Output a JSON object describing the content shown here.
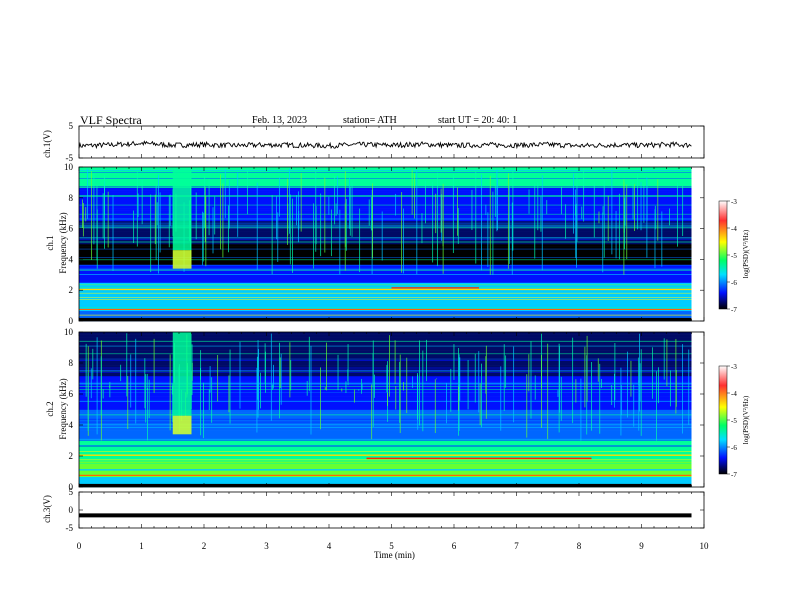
{
  "header": {
    "title": "VLF  Spectra",
    "date": "Feb. 13, 2023",
    "station": "station= ATH",
    "start": "start  UT  =    20: 40: 1"
  },
  "chart_data": [
    {
      "type": "line",
      "panel": "ch1-waveform",
      "ylabel": "ch.1(V)",
      "ylim": [
        -5,
        5
      ],
      "yticks": [
        "5",
        "-5"
      ],
      "x": [
        0,
        0.5,
        1,
        1.5,
        2,
        2.5,
        3,
        3.5,
        4,
        4.5,
        5,
        5.5,
        6,
        6.5,
        7,
        7.5,
        8,
        8.5,
        9,
        9.5,
        9.8
      ],
      "values": [
        -1.2,
        -0.9,
        -0.4,
        -1.0,
        -0.8,
        -1.1,
        -0.9,
        -1.0,
        -1.2,
        -0.8,
        -1.0,
        -0.7,
        -1.1,
        -0.9,
        -1.0,
        -0.8,
        -1.2,
        -0.9,
        -1.0,
        -0.8,
        -1.0
      ],
      "color": "#000000"
    },
    {
      "type": "heatmap",
      "panel": "ch1-spectrogram",
      "ylabel": "ch.1\nFrequency (kHz)",
      "ylim": [
        0,
        10
      ],
      "yticks": [
        "0",
        "2",
        "4",
        "6",
        "8",
        "10"
      ],
      "colorbar": {
        "label": "log(PSD)(V²/Hz)",
        "range": [
          -7,
          -3
        ],
        "ticks": [
          "-3",
          "-4",
          "-5",
          "-6",
          "-7"
        ],
        "colors": [
          "#ffffff",
          "#ff0000",
          "#ffff00",
          "#00ff66",
          "#00ffff",
          "#0000ff",
          "#000000"
        ]
      },
      "features": {
        "burst_time_min": [
          1.5,
          1.8
        ],
        "dark_band_khz": [
          3.5,
          6.0
        ],
        "bright_band_khz": [
          0.6,
          2.4
        ]
      }
    },
    {
      "type": "heatmap",
      "panel": "ch2-spectrogram",
      "ylabel": "ch.2\nFrequency (kHz)",
      "ylim": [
        0,
        10
      ],
      "yticks": [
        "0",
        "2",
        "4",
        "6",
        "8",
        "10"
      ],
      "colorbar": {
        "label": "log(PSD)(V²/Hz)",
        "range": [
          -7,
          -3
        ],
        "ticks": [
          "-3",
          "-4",
          "-5",
          "-6",
          "-7"
        ],
        "colors": [
          "#ffffff",
          "#ff0000",
          "#ffff00",
          "#00ff66",
          "#00ffff",
          "#0000ff",
          "#000000"
        ]
      },
      "features": {
        "burst_time_min": [
          1.5,
          1.8
        ],
        "bright_band_khz": [
          0.5,
          2.2
        ]
      }
    },
    {
      "type": "line",
      "panel": "ch3-waveform",
      "ylabel": "ch.3(V)",
      "ylim": [
        -5,
        5
      ],
      "yticks": [
        "5",
        "0",
        "-5"
      ],
      "x": [
        0,
        9.8
      ],
      "values": [
        -1.5,
        -1.5
      ],
      "color": "#000000"
    }
  ],
  "xaxis": {
    "label": "Time  (min)",
    "range": [
      0,
      10
    ],
    "ticks": [
      "0",
      "1",
      "2",
      "3",
      "4",
      "5",
      "6",
      "7",
      "8",
      "9",
      "10"
    ]
  }
}
